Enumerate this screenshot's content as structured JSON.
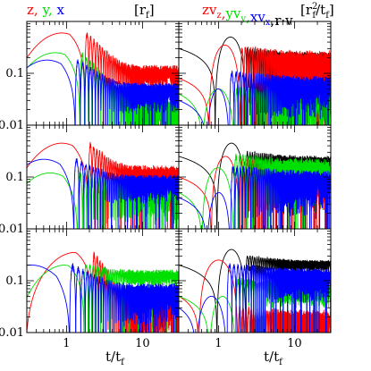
{
  "chart_data": {
    "type": "line",
    "layout": "3 rows x 2 columns of log-log panels",
    "xscale": "log",
    "yscale": "log",
    "xlim": [
      0.3,
      30
    ],
    "ylim": [
      0.01,
      1
    ],
    "xticks": [
      1,
      10
    ],
    "xtick_labels": [
      "1",
      "10"
    ],
    "yticks": [
      0.01,
      0.1
    ],
    "ytick_labels": [
      "0.01",
      "0.1"
    ],
    "xlabel": {
      "base": "t/t",
      "sub": "f"
    },
    "grid": false,
    "colors": {
      "z": "#ff0000",
      "y": "#00e000",
      "x": "#0000ff",
      "rv": "#000000"
    },
    "left_title": {
      "parts": [
        {
          "text": "z",
          "color": "#ff0000"
        },
        {
          "text": ", ",
          "color": "#ff0000"
        },
        {
          "text": "y",
          "color": "#00e000"
        },
        {
          "text": ", ",
          "color": "#00e000"
        },
        {
          "text": "x",
          "color": "#0000ff"
        }
      ],
      "units": {
        "open": "[r",
        "sub": "f",
        "close": "]"
      }
    },
    "right_title": {
      "parts": [
        {
          "text": "zv",
          "sub": "z",
          "color": "#ff0000"
        },
        {
          "text": ",",
          "color": "#ff0000"
        },
        {
          "text": "yv",
          "sub": "y",
          "color": "#00e000"
        },
        {
          "text": ",",
          "color": "#00e000"
        },
        {
          "text": "xv",
          "sub": "x",
          "color": "#0000ff"
        },
        {
          "text": ",",
          "color": "#000000"
        },
        {
          "text": "r·v",
          "color": "#000000"
        }
      ],
      "units": {
        "open": "[r",
        "sub": "f",
        "sup": "2",
        "slash": "/t",
        "sub2": "f",
        "close": "]"
      }
    },
    "panels": [
      {
        "row": 0,
        "col": 0,
        "series": [
          {
            "key": "z",
            "start": 0.45,
            "peak": 0.6,
            "t_peak": 0.85,
            "first_zero": 1.75,
            "env_level": 0.13,
            "late_floor": 0.05,
            "period": 0.22,
            "noise": 0.25
          },
          {
            "key": "y",
            "start": 0.22,
            "peak": 0.25,
            "t_peak": 0.7,
            "first_zero": 1.5,
            "env_level": 0.03,
            "late_floor": 0.003,
            "period": 0.22,
            "noise": 0.2
          },
          {
            "key": "x",
            "start": 0.17,
            "peak": 0.18,
            "t_peak": 0.55,
            "first_zero": 1.3,
            "env_level": 0.06,
            "late_floor": 0.015,
            "period": 0.22,
            "noise": 0.2
          }
        ]
      },
      {
        "row": 0,
        "col": 1,
        "series": [
          {
            "key": "rv",
            "start": 0.3,
            "dip_at": 0.9,
            "second_zero": 2.3,
            "bump": 0.5,
            "env_level": 0.3,
            "late_floor": 0.04,
            "period": 0.2,
            "noise": 0.15
          },
          {
            "key": "z",
            "start": 0.08,
            "dip_at": 0.75,
            "second_zero": 1.95,
            "bump": 0.35,
            "env_level": 0.3,
            "late_floor": 0.01,
            "period": 0.2,
            "noise": 0.3
          },
          {
            "key": "y",
            "start": 0.04,
            "dip_at": 0.6,
            "second_zero": 1.65,
            "bump": 0.05,
            "env_level": 0.05,
            "late_floor": 0.002,
            "period": 0.2,
            "noise": 0.3
          },
          {
            "key": "x",
            "start": 0.03,
            "dip_at": 0.7,
            "second_zero": 1.4,
            "bump": 0.05,
            "env_level": 0.1,
            "late_floor": 0.01,
            "period": 0.2,
            "noise": 0.3
          }
        ]
      },
      {
        "row": 1,
        "col": 0,
        "series": [
          {
            "key": "z",
            "start": 0.35,
            "peak": 0.45,
            "t_peak": 0.85,
            "first_zero": 1.95,
            "env_level": 0.15,
            "late_floor": 0.04,
            "period": 0.22,
            "noise": 0.25
          },
          {
            "key": "y",
            "start": 0.1,
            "peak": 0.12,
            "t_peak": 0.6,
            "first_zero": 1.4,
            "env_level": 0.08,
            "late_floor": 0.01,
            "period": 0.22,
            "noise": 0.2
          },
          {
            "key": "x",
            "start": 0.2,
            "peak": 0.22,
            "t_peak": 0.5,
            "first_zero": 1.25,
            "env_level": 0.1,
            "late_floor": 0.03,
            "period": 0.22,
            "noise": 0.2
          }
        ]
      },
      {
        "row": 1,
        "col": 1,
        "series": [
          {
            "key": "rv",
            "start": 0.25,
            "dip_at": 0.95,
            "second_zero": 2.3,
            "bump": 0.45,
            "env_level": 0.3,
            "late_floor": 0.05,
            "period": 0.2,
            "noise": 0.15
          },
          {
            "key": "z",
            "start": 0.1,
            "dip_at": 0.8,
            "second_zero": 1.9,
            "bump": 0.25,
            "env_level": 0.2,
            "late_floor": 0.01,
            "period": 0.2,
            "noise": 0.3
          },
          {
            "key": "y",
            "start": 0.05,
            "dip_at": 0.6,
            "second_zero": 1.6,
            "bump": 0.15,
            "env_level": 0.25,
            "late_floor": 0.01,
            "period": 0.2,
            "noise": 0.3
          },
          {
            "key": "x",
            "start": 0.04,
            "dip_at": 0.7,
            "second_zero": 1.45,
            "bump": 0.05,
            "env_level": 0.15,
            "late_floor": 0.01,
            "period": 0.2,
            "noise": 0.3
          }
        ]
      },
      {
        "row": 2,
        "col": 0,
        "series": [
          {
            "key": "z",
            "start": 0.12,
            "peak": 0.35,
            "t_peak": 1.2,
            "first_zero": 2.2,
            "env_level": 0.04,
            "late_floor": 0.002,
            "period": 0.22,
            "noise": 0.3
          },
          {
            "key": "y",
            "start": 0.1,
            "peak": 0.2,
            "t_peak": 0.9,
            "first_zero": 1.7,
            "env_level": 0.15,
            "late_floor": 0.08,
            "period": 0.22,
            "noise": 0.2
          },
          {
            "key": "x",
            "start": 0.25,
            "peak": 0.2,
            "t_peak": 0.35,
            "first_zero": 1.1,
            "env_level": 0.08,
            "late_floor": 0.01,
            "period": 0.22,
            "noise": 0.25
          }
        ]
      },
      {
        "row": 2,
        "col": 1,
        "series": [
          {
            "key": "rv",
            "start": 0.2,
            "dip_at": 0.95,
            "second_zero": 2.3,
            "bump": 0.4,
            "env_level": 0.3,
            "late_floor": 0.15,
            "period": 0.2,
            "noise": 0.1
          },
          {
            "key": "z",
            "start": 0.05,
            "dip_at": 0.55,
            "second_zero": 1.8,
            "bump": 0.25,
            "env_level": 0.03,
            "late_floor": 0.003,
            "period": 0.2,
            "noise": 0.3
          },
          {
            "key": "y",
            "start": 0.05,
            "dip_at": 0.75,
            "second_zero": 1.7,
            "bump": 0.05,
            "env_level": 0.1,
            "late_floor": 0.03,
            "period": 0.2,
            "noise": 0.3
          },
          {
            "key": "x",
            "start": 0.03,
            "dip_at": 0.5,
            "second_zero": 1.3,
            "bump": 0.05,
            "env_level": 0.2,
            "late_floor": 0.03,
            "period": 0.2,
            "noise": 0.2
          }
        ]
      }
    ]
  }
}
